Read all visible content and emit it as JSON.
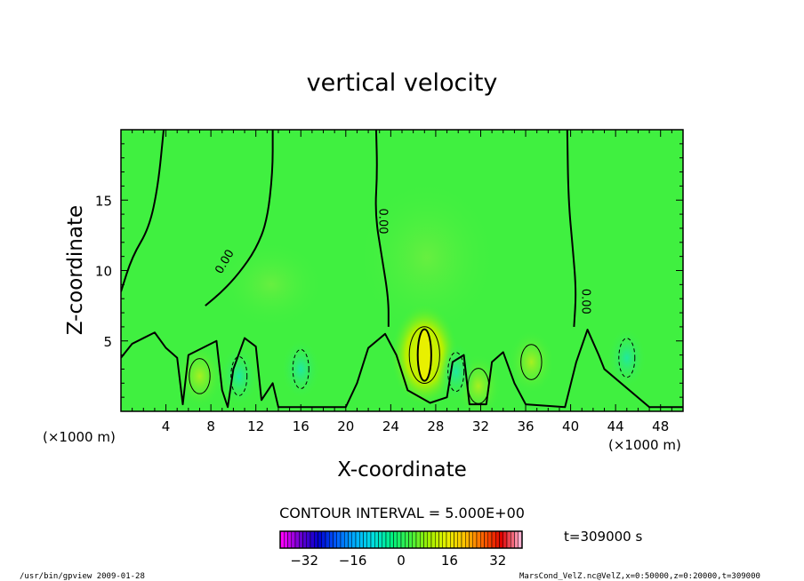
{
  "chart_data": {
    "type": "contour",
    "title": "vertical velocity",
    "xlabel": "X-coordinate",
    "ylabel": "Z-coordinate",
    "x_unit_left": "(×1000 m)",
    "x_unit_right": "(×1000 m)",
    "xlim": [
      0,
      50
    ],
    "ylim": [
      0,
      20
    ],
    "x_ticks": [
      4,
      8,
      12,
      16,
      20,
      24,
      28,
      32,
      36,
      40,
      44,
      48
    ],
    "y_ticks": [
      5,
      10,
      15
    ],
    "contour_interval_text": "CONTOUR INTERVAL = 5.000E+00",
    "contour_label": "0.00",
    "time_text": "t=309000 s",
    "colorbar": {
      "min": -40,
      "max": 40,
      "tick_values": [
        -32,
        -16,
        0,
        16,
        32
      ],
      "tick_labels": [
        "−32",
        "−16",
        "0",
        "16",
        "32"
      ],
      "colors": [
        "#ff00ff",
        "#6a00d0",
        "#0000d0",
        "#0060ff",
        "#00b0ff",
        "#00e0e0",
        "#00f080",
        "#40f040",
        "#a0f000",
        "#e8f000",
        "#ffc000",
        "#ff6000",
        "#e00000",
        "#ffb0d0"
      ]
    },
    "field_background_color": "#40f040",
    "zero_contours": [
      [
        [
          0,
          8.5
        ],
        [
          1,
          11
        ],
        [
          2.5,
          13
        ],
        [
          3.3,
          16
        ],
        [
          3.8,
          20
        ]
      ],
      [
        [
          7.5,
          7.5
        ],
        [
          9,
          8.5
        ],
        [
          10.5,
          9.8
        ],
        [
          12,
          11.5
        ],
        [
          13,
          13.5
        ],
        [
          13.5,
          17
        ],
        [
          13.5,
          20
        ]
      ],
      [
        [
          22.7,
          20
        ],
        [
          22.8,
          17
        ],
        [
          22.6,
          14
        ],
        [
          23.2,
          11
        ],
        [
          23.8,
          8
        ],
        [
          23.8,
          6
        ]
      ],
      [
        [
          39.7,
          20
        ],
        [
          39.8,
          15
        ],
        [
          40.2,
          11.5
        ],
        [
          40.5,
          8.5
        ],
        [
          40.3,
          6
        ]
      ]
    ],
    "positive_anomalies": [
      {
        "x": 7,
        "z": 2.5,
        "level": 5
      },
      {
        "x": 27,
        "z": 4,
        "level": 10
      },
      {
        "x": 36.5,
        "z": 3.5,
        "level": 5
      },
      {
        "x": 31.8,
        "z": 1.8,
        "level": 5
      }
    ],
    "negative_anomalies": [
      {
        "x": 10.5,
        "z": 2.5,
        "level": -5
      },
      {
        "x": 16,
        "z": 3,
        "level": -5
      },
      {
        "x": 29.8,
        "z": 2.8,
        "level": -5
      },
      {
        "x": 45,
        "z": 3.8,
        "level": -5
      }
    ]
  },
  "footer": {
    "left": "/usr/bin/gpview   2009-01-28",
    "right": "MarsCond_VelZ.nc@VelZ,x=0:50000,z=0:20000,t=309000"
  },
  "icons": [
    "none"
  ]
}
